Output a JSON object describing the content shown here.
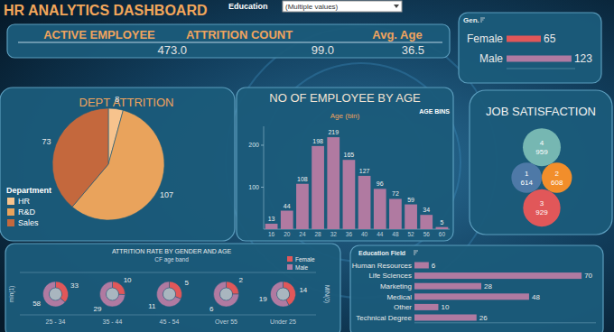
{
  "header": {
    "title": "HR ANALYTICS DASHBOARD",
    "filter_label": "Education",
    "filter_value": "(Multiple values)"
  },
  "kpis": [
    {
      "label": "ACTIVE EMPLOYEE",
      "value": "473.0"
    },
    {
      "label": "ATTRITION COUNT",
      "value": "99.0"
    },
    {
      "label": "Avg. Age",
      "value": "36.5"
    }
  ],
  "chart_data": [
    {
      "type": "bar",
      "orientation": "horizontal",
      "title": "Gen.",
      "categories": [
        "Female",
        "Male"
      ],
      "values": [
        65,
        123
      ],
      "colors": [
        "#e15759",
        "#b07aa1"
      ],
      "xlim": [
        0,
        130
      ],
      "data_labels": true,
      "tick_labels": "y"
    },
    {
      "type": "pie",
      "title": "DEPT ATTRITION",
      "categories": [
        "HR",
        "R&D",
        "Sales"
      ],
      "values": [
        8,
        107,
        73
      ],
      "colors": [
        "#f7c38d",
        "#e9a35c",
        "#c4683d"
      ],
      "legend": "lower left",
      "legend_title": "Department",
      "data_labels": true
    },
    {
      "type": "bar",
      "title": "NO OF EMPLOYEE BY AGE",
      "subtitle": "Age (bin)",
      "annotations": [
        "AGE BINS"
      ],
      "categories": [
        "16",
        "20",
        "24",
        "28",
        "32",
        "36",
        "40",
        "44",
        "48",
        "52",
        "56",
        "60"
      ],
      "values": [
        13,
        44,
        108,
        198,
        219,
        165,
        127,
        96,
        72,
        59,
        34,
        5
      ],
      "color": "#b07aa1",
      "ylim": [
        0,
        245
      ],
      "yticks": [
        100,
        200
      ],
      "grid": false,
      "data_labels": true
    },
    {
      "type": "bubble",
      "title": "JOB SATISFACTION",
      "categories": [
        "4",
        "1",
        "2",
        "3"
      ],
      "values": [
        959,
        614,
        608,
        929
      ],
      "colors": [
        "#76b7b2",
        "#4e79a7",
        "#f28e2b",
        "#e15759"
      ],
      "data_labels": true
    },
    {
      "type": "donut",
      "title": "ATTRITION RATE BY GENDER AND AGE",
      "xlabel": "CF age band",
      "ylabel": "min(1)",
      "y2label": "MIN(0)",
      "categories": [
        "25 - 34",
        "35 - 44",
        "45 - 54",
        "Over 55",
        "Under 25"
      ],
      "series": [
        {
          "name": "Female",
          "color": "#e15759",
          "values": [
            33,
            10,
            5,
            2,
            14
          ]
        },
        {
          "name": "Male",
          "color": "#b07aa1",
          "values": [
            58,
            29,
            11,
            6,
            19
          ]
        }
      ],
      "legend": "upper right",
      "data_labels": true
    },
    {
      "type": "bar",
      "orientation": "horizontal",
      "title": "Education Field",
      "categories": [
        "Human Resources",
        "Life Sciences",
        "Marketing",
        "Medical",
        "Other",
        "Technical Degree"
      ],
      "values": [
        6,
        70,
        28,
        48,
        10,
        26
      ],
      "color": "#b07aa1",
      "xlim": [
        0,
        76
      ],
      "data_labels": true,
      "tick_labels": "y"
    }
  ]
}
